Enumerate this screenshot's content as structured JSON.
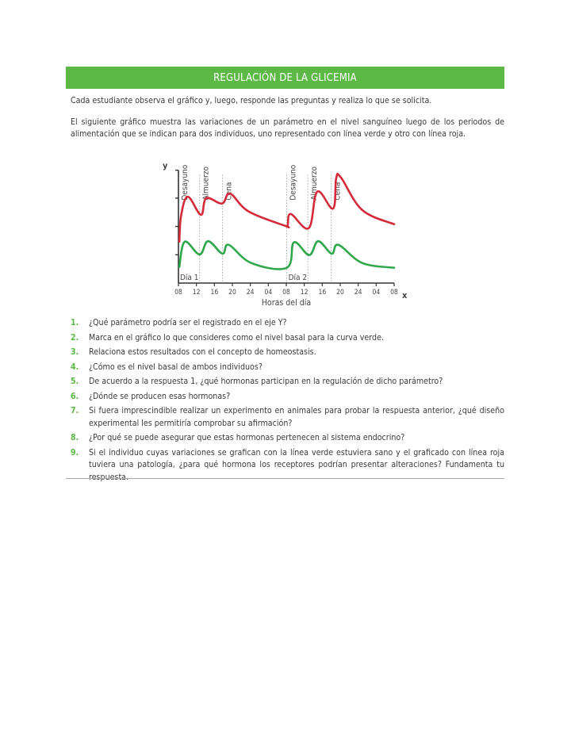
{
  "header": {
    "title": "REGULACIÓN DE LA GLICEMIA"
  },
  "intro": [
    "Cada estudiante observa el gráfico y, luego, responde las preguntas y realiza lo que se solicita.",
    "El siguiente gráfico muestra las variaciones de un parámetro en el nivel sanguíneo luego de los periodos de alimentación que se indican para dos individuos, uno representado con línea verde y otro con línea roja."
  ],
  "chart_data": {
    "type": "line",
    "title": "",
    "xlabel": "Horas del día",
    "ylabel": "y",
    "x_axis_letter": "x",
    "xlim": [
      8,
      56
    ],
    "ylim": [
      0,
      4.1
    ],
    "x_tick_values": [
      8,
      12,
      16,
      20,
      24,
      28,
      32,
      36,
      40,
      44,
      48,
      52,
      56
    ],
    "x_tick_labels": [
      "08",
      "12",
      "16",
      "20",
      "24",
      "04",
      "08",
      "12",
      "16",
      "20",
      "24",
      "04",
      "08"
    ],
    "y_tick_values": [
      1,
      2,
      3
    ],
    "y_tick_labels": [
      "",
      "",
      ""
    ],
    "grid": false,
    "meal_markers": [
      {
        "x": 8,
        "label": "Desayuno"
      },
      {
        "x": 12.7,
        "label": "Almuerzo"
      },
      {
        "x": 17.8,
        "label": "Cena"
      },
      {
        "x": 32.1,
        "label": "Desayuno"
      },
      {
        "x": 36.8,
        "label": "Almuerzo"
      },
      {
        "x": 42,
        "label": "Cena"
      }
    ],
    "day_labels": [
      {
        "x": 8,
        "label": "Día 1"
      },
      {
        "x": 32.1,
        "label": "Día 2"
      }
    ],
    "series": [
      {
        "color": "#d42a3a",
        "points": [
          [
            8.2,
            1.46
          ],
          [
            8.6,
            2.39
          ],
          [
            10.1,
            3.05
          ],
          [
            13,
            2.41
          ],
          [
            14.2,
            3.0
          ],
          [
            17.7,
            2.81
          ],
          [
            19.5,
            3.16
          ],
          [
            23.6,
            2.53
          ],
          [
            31.8,
            2.02
          ],
          [
            32.3,
            2.04
          ],
          [
            33,
            2.44
          ],
          [
            37,
            1.94
          ],
          [
            38.9,
            3.23
          ],
          [
            42.4,
            2.63
          ],
          [
            43.1,
            3.7
          ],
          [
            44.2,
            3.72
          ],
          [
            48.9,
            2.58
          ],
          [
            56,
            2.08
          ]
        ]
      },
      {
        "color": "#2ea84a",
        "points": [
          [
            8.2,
            0.57
          ],
          [
            9.4,
            1.46
          ],
          [
            12.7,
            1.01
          ],
          [
            14.6,
            1.48
          ],
          [
            17.8,
            1.04
          ],
          [
            19.2,
            1.35
          ],
          [
            24.2,
            0.71
          ],
          [
            32.1,
            0.54
          ],
          [
            33.7,
            1.44
          ],
          [
            37.1,
            0.99
          ],
          [
            39.1,
            1.48
          ],
          [
            42.1,
            1.04
          ],
          [
            43.6,
            1.35
          ],
          [
            48.9,
            0.71
          ],
          [
            56,
            0.54
          ]
        ]
      }
    ]
  },
  "questions": [
    {
      "num": "1.",
      "text": "¿Qué parámetro podría ser el registrado en el eje Y?"
    },
    {
      "num": "2.",
      "text": "Marca en el gráfico lo que consideres como el nivel basal para la curva verde."
    },
    {
      "num": "3.",
      "text": "Relaciona estos resultados con el concepto de homeostasis."
    },
    {
      "num": "4.",
      "text": "¿Cómo es el nivel basal de ambos individuos?"
    },
    {
      "num": "5.",
      "text": "De acuerdo a la respuesta 1, ¿qué hormonas participan en la regulación de dicho parámetro?"
    },
    {
      "num": "6.",
      "text": "¿Dónde se producen esas hormonas?"
    },
    {
      "num": "7.",
      "text": "Si fuera imprescindible realizar un experimento en animales para probar la respuesta anterior, ¿qué diseño experimental les permitiría comprobar su afirmación?"
    },
    {
      "num": "8.",
      "text": "¿Por qué se puede asegurar que estas hormonas pertenecen al sistema endocrino?"
    },
    {
      "num": "9.",
      "text": "Si el individuo cuyas variaciones se grafican con la línea verde estuviera sano y el graficado con línea roja tuviera una patología, ¿para qué hormona los receptores podrían presentar alteraciones? Fundamenta tu respuesta."
    }
  ],
  "colors": {
    "accent": "#5cb946",
    "red_series": "#d42a3a",
    "green_series": "#2ea84a"
  }
}
